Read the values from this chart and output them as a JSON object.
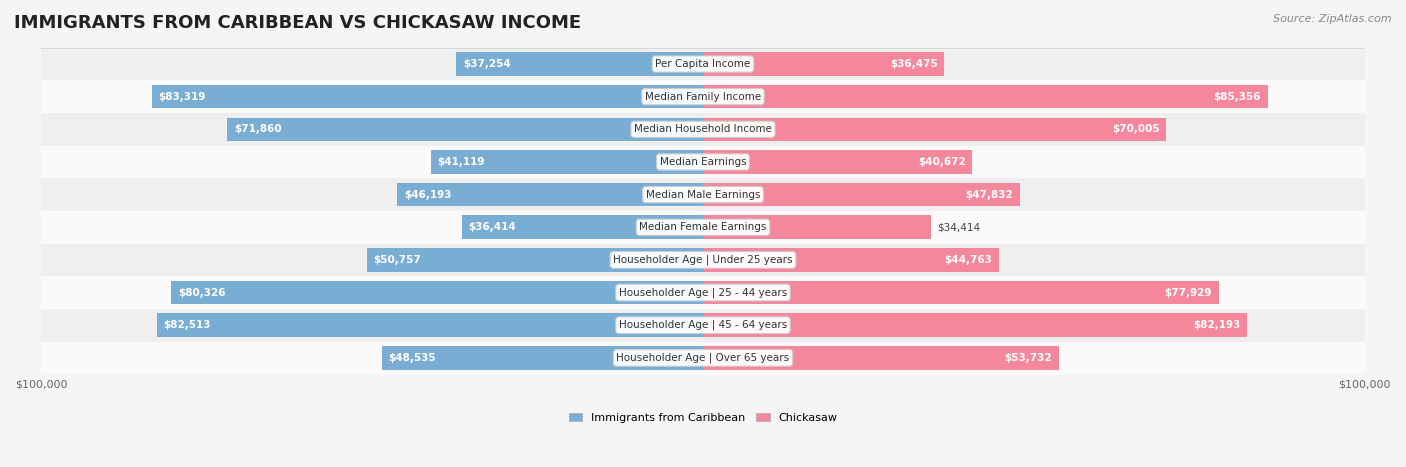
{
  "title": "IMMIGRANTS FROM CARIBBEAN VS CHICKASAW INCOME",
  "source": "Source: ZipAtlas.com",
  "categories": [
    "Per Capita Income",
    "Median Family Income",
    "Median Household Income",
    "Median Earnings",
    "Median Male Earnings",
    "Median Female Earnings",
    "Householder Age | Under 25 years",
    "Householder Age | 25 - 44 years",
    "Householder Age | 45 - 64 years",
    "Householder Age | Over 65 years"
  ],
  "caribbean_values": [
    37254,
    83319,
    71860,
    41119,
    46193,
    36414,
    50757,
    80326,
    82513,
    48535
  ],
  "chickasaw_values": [
    36475,
    85356,
    70005,
    40672,
    47832,
    34414,
    44763,
    77929,
    82193,
    53732
  ],
  "caribbean_color": "#7aadd4",
  "chickasaw_color": "#f4879c",
  "caribbean_dark_color": "#5b8fbf",
  "chickasaw_dark_color": "#e8607a",
  "max_value": 100000,
  "background_color": "#f5f5f5",
  "row_bg_color": "#efefef",
  "row_alt_color": "#fafafa",
  "label_bg_color": "#ffffff",
  "legend_caribbean": "Immigrants from Caribbean",
  "legend_chickasaw": "Chickasaw"
}
